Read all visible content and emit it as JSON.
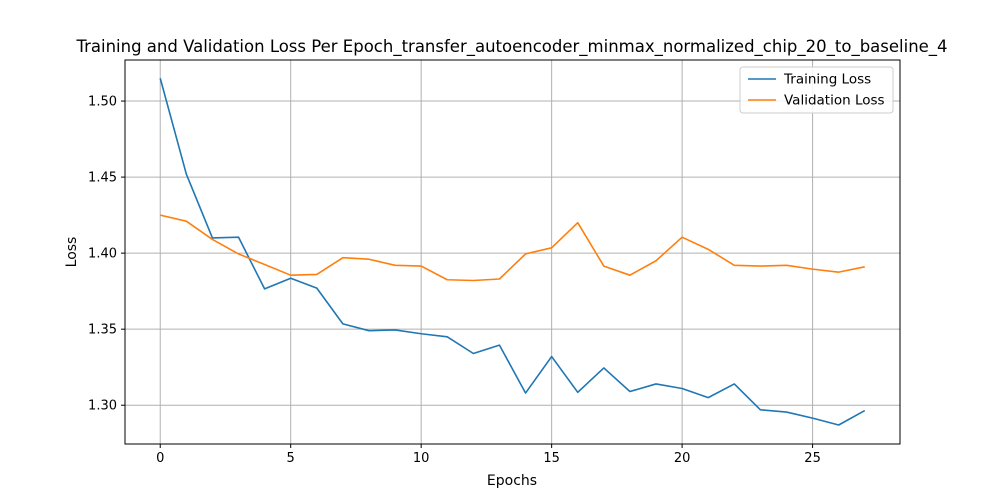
{
  "chart_data": {
    "type": "line",
    "title": "Training and Validation Loss Per Epoch_transfer_autoencoder_minmax_normalized_chip_20_to_baseline_4",
    "xlabel": "Epochs",
    "ylabel": "Loss",
    "xlim": [
      -1.35,
      28.35
    ],
    "ylim": [
      1.2745,
      1.527
    ],
    "xticks": [
      0,
      5,
      10,
      15,
      20,
      25
    ],
    "yticks": [
      1.3,
      1.35,
      1.4,
      1.45,
      1.5
    ],
    "ytick_labels": [
      "1.30",
      "1.35",
      "1.40",
      "1.45",
      "1.50"
    ],
    "grid": true,
    "legend_position": "top-right",
    "x": [
      0,
      1,
      2,
      3,
      4,
      5,
      6,
      7,
      8,
      9,
      10,
      11,
      12,
      13,
      14,
      15,
      16,
      17,
      18,
      19,
      20,
      21,
      22,
      23,
      24,
      25,
      26,
      27
    ],
    "series": [
      {
        "name": "Training Loss",
        "color": "#1f77b4",
        "values": [
          1.515,
          1.452,
          1.41,
          1.4105,
          1.3765,
          1.3835,
          1.377,
          1.3535,
          1.349,
          1.3495,
          1.347,
          1.345,
          1.334,
          1.3395,
          1.308,
          1.332,
          1.3085,
          1.3245,
          1.309,
          1.314,
          1.311,
          1.305,
          1.314,
          1.297,
          1.2955,
          1.2915,
          1.287,
          1.2965
        ]
      },
      {
        "name": "Validation Loss",
        "color": "#ff7f0e",
        "values": [
          1.425,
          1.421,
          1.409,
          1.3995,
          1.3925,
          1.3855,
          1.386,
          1.397,
          1.396,
          1.392,
          1.3915,
          1.3825,
          1.382,
          1.383,
          1.3995,
          1.4035,
          1.42,
          1.3915,
          1.3855,
          1.395,
          1.4105,
          1.4025,
          1.392,
          1.3915,
          1.392,
          1.3895,
          1.3875,
          1.391
        ]
      }
    ]
  }
}
